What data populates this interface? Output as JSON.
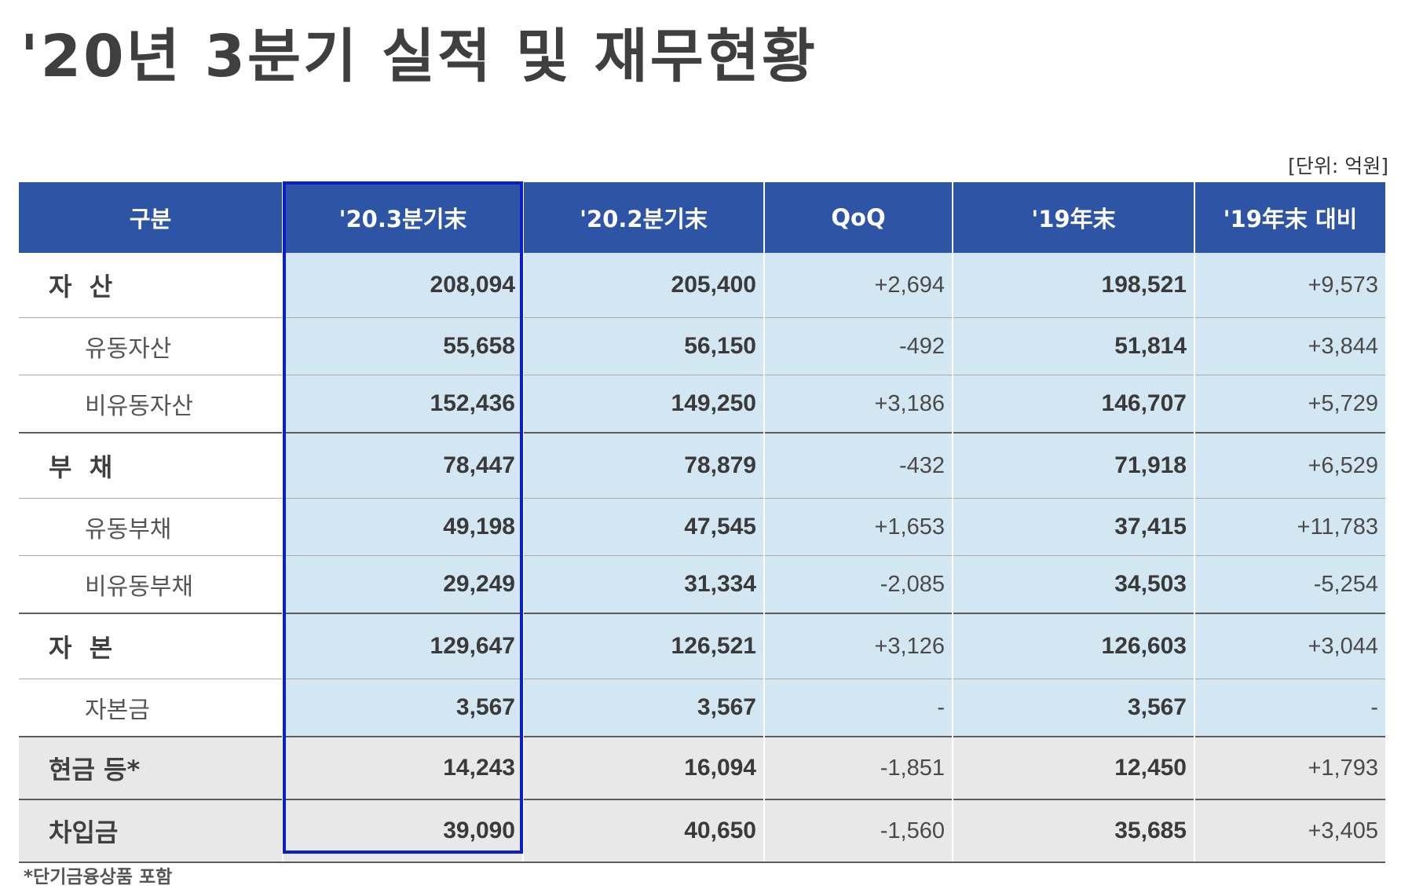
{
  "title": "'20년 3분기 실적 및 재무현황",
  "unit_note": "[단위: 억원]",
  "footnote": "*단기금융상품 포함",
  "headers": [
    "구분",
    "'20.3분기末",
    "'20.2분기末",
    "QoQ",
    "'19年末",
    "'19年末 대비"
  ],
  "rows": [
    {
      "label": "자  산",
      "q3": "208,094",
      "q2": "205,400",
      "qoq": "+2,694",
      "y19": "198,521",
      "vs19": "+9,573"
    },
    {
      "label": "유동자산",
      "q3": "55,658",
      "q2": "56,150",
      "qoq": "-492",
      "y19": "51,814",
      "vs19": "+3,844"
    },
    {
      "label": "비유동자산",
      "q3": "152,436",
      "q2": "149,250",
      "qoq": "+3,186",
      "y19": "146,707",
      "vs19": "+5,729"
    },
    {
      "label": "부  채",
      "q3": "78,447",
      "q2": "78,879",
      "qoq": "-432",
      "y19": "71,918",
      "vs19": "+6,529"
    },
    {
      "label": "유동부채",
      "q3": "49,198",
      "q2": "47,545",
      "qoq": "+1,653",
      "y19": "37,415",
      "vs19": "+11,783"
    },
    {
      "label": "비유동부채",
      "q3": "29,249",
      "q2": "31,334",
      "qoq": "-2,085",
      "y19": "34,503",
      "vs19": "-5,254"
    },
    {
      "label": "자  본",
      "q3": "129,647",
      "q2": "126,521",
      "qoq": "+3,126",
      "y19": "126,603",
      "vs19": "+3,044"
    },
    {
      "label": "자본금",
      "q3": "3,567",
      "q2": "3,567",
      "qoq": "-",
      "y19": "3,567",
      "vs19": "-"
    },
    {
      "label": "현금 등*",
      "q3": "14,243",
      "q2": "16,094",
      "qoq": "-1,851",
      "y19": "12,450",
      "vs19": "+1,793"
    },
    {
      "label": "차입금",
      "q3": "39,090",
      "q2": "40,650",
      "qoq": "-1,560",
      "y19": "35,685",
      "vs19": "+3,405"
    }
  ]
}
